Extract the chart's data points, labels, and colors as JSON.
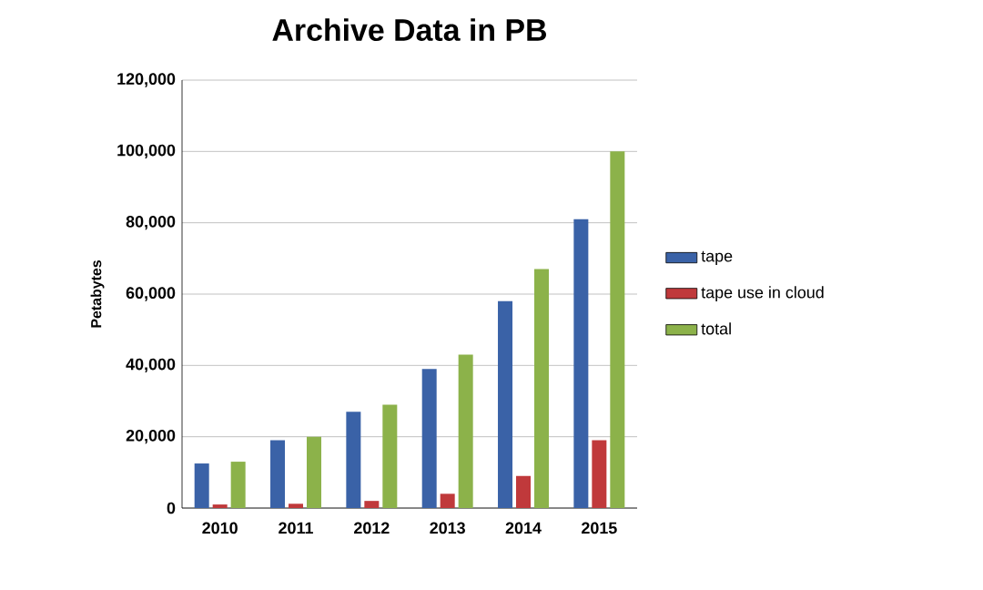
{
  "chart_data": {
    "type": "bar",
    "title": "Archive Data in PB",
    "ylabel": "Petabytes",
    "categories": [
      "2010",
      "2011",
      "2012",
      "2013",
      "2014",
      "2015"
    ],
    "series": [
      {
        "name": "tape",
        "color": "#3a62a7",
        "values": [
          12500,
          19000,
          27000,
          39000,
          58000,
          81000
        ]
      },
      {
        "name": "tape use in cloud",
        "color": "#c0393b",
        "values": [
          1000,
          1200,
          2000,
          4000,
          9000,
          19000
        ]
      },
      {
        "name": "total",
        "color": "#8cb24a",
        "values": [
          13000,
          20000,
          29000,
          43000,
          67000,
          100000
        ]
      }
    ],
    "ylim": [
      0,
      120000
    ],
    "yticks": [
      {
        "value": 0,
        "label": "0"
      },
      {
        "value": 20000,
        "label": "20,000"
      },
      {
        "value": 40000,
        "label": "40,000"
      },
      {
        "value": 60000,
        "label": "60,000"
      },
      {
        "value": 80000,
        "label": "80,000"
      },
      {
        "value": 100000,
        "label": "100,000"
      },
      {
        "value": 120000,
        "label": "120,000"
      }
    ],
    "grid": "y",
    "legend": "right"
  }
}
